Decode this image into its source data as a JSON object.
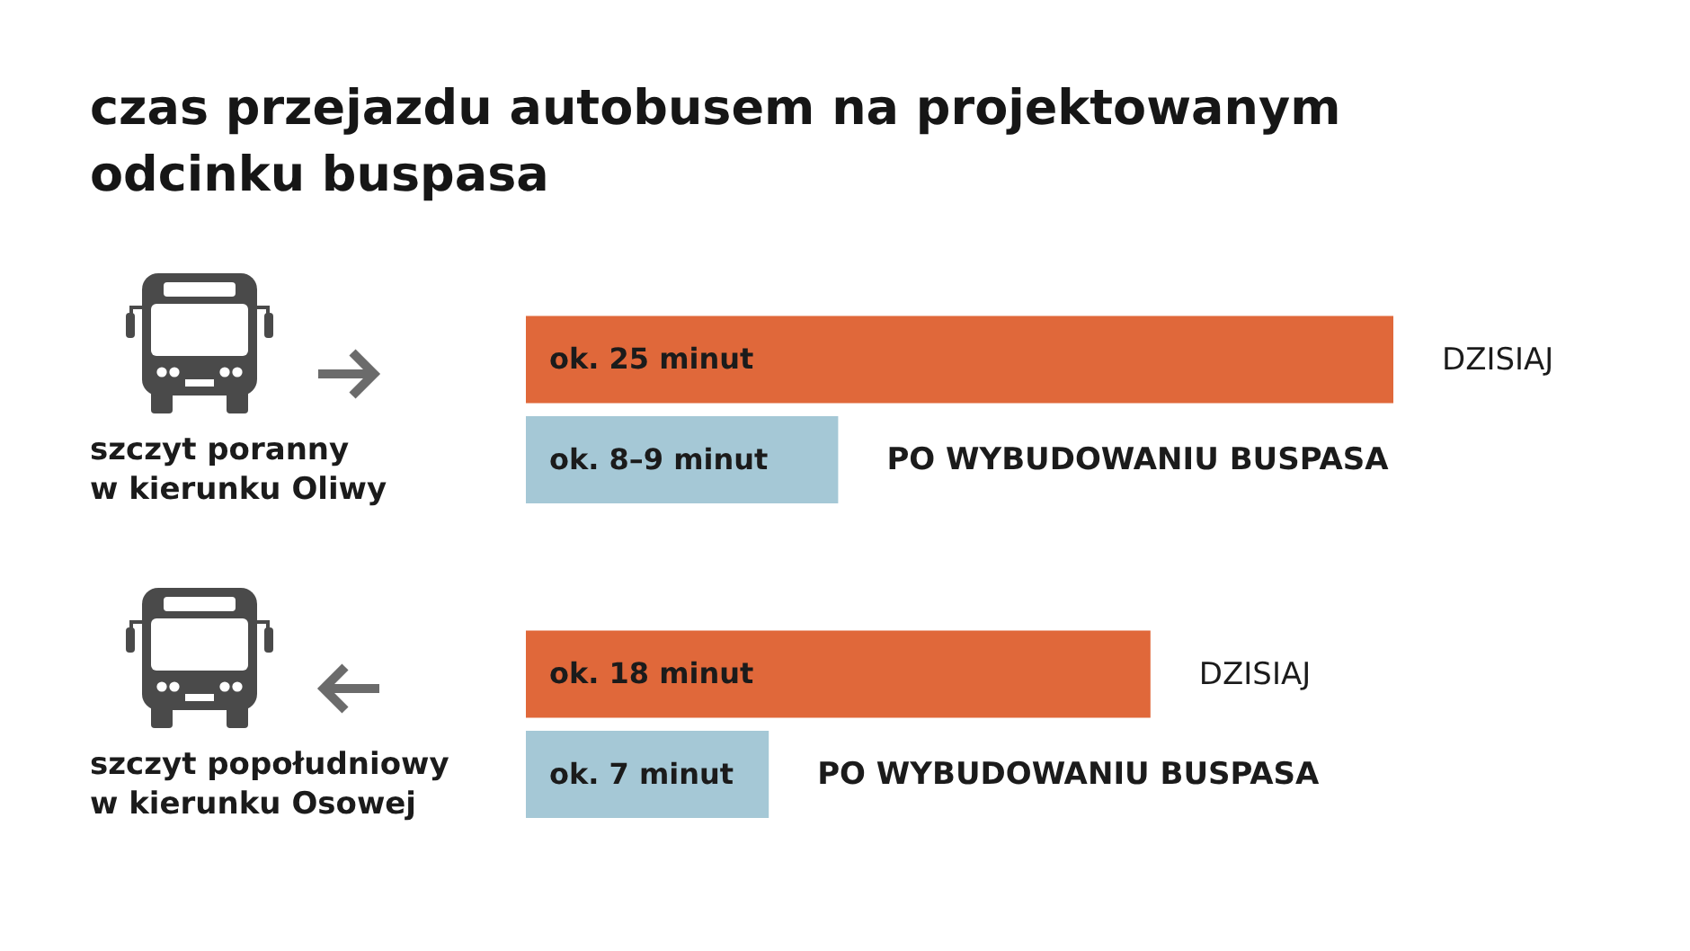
{
  "chart_data": {
    "type": "bar",
    "orientation": "horizontal",
    "title": "czas przejazdu autobusem na projektowanym odcinku buspasa",
    "categories": [
      "szczyt poranny w kierunku Oliwy",
      "szczyt popołudniowy w kierunku Osowej"
    ],
    "series": [
      {
        "name": "DZISIAJ",
        "color": "#e0683a",
        "values": [
          25,
          18
        ],
        "value_labels": [
          "ok. 25 minut",
          "ok. 18 minut"
        ]
      },
      {
        "name": "PO WYBUDOWANIU BUSPASA",
        "color": "#a5c8d6",
        "values": [
          9,
          7
        ],
        "value_labels": [
          "ok. 8–9 minut",
          "ok. 7 minut"
        ]
      }
    ],
    "tick_labels": "y"
  }
}
